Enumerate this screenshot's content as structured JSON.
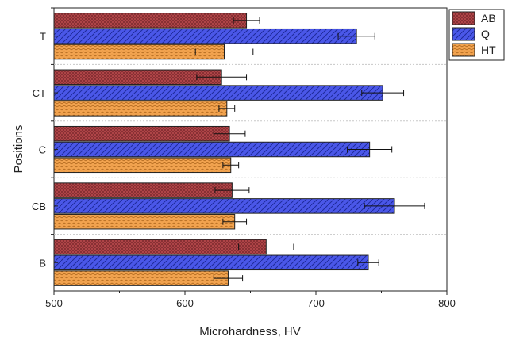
{
  "chart_data": {
    "type": "bar",
    "orientation": "horizontal",
    "xlabel": "Microhardness, HV",
    "ylabel": "Positions",
    "xlim": [
      500,
      800
    ],
    "xticks": [
      500,
      600,
      700,
      800
    ],
    "categories": [
      "B",
      "CB",
      "C",
      "CT",
      "T"
    ],
    "series": [
      {
        "name": "AB",
        "color": "#b4474a",
        "pattern": "crosshatch",
        "values": [
          662,
          636,
          634,
          628,
          647
        ],
        "errors": [
          21,
          13,
          12,
          19,
          10
        ]
      },
      {
        "name": "Q",
        "color": "#4a57e8",
        "pattern": "diagonal",
        "values": [
          740,
          760,
          741,
          751,
          731
        ],
        "errors": [
          8,
          23,
          17,
          16,
          14
        ]
      },
      {
        "name": "HT",
        "color": "#f2a34f",
        "pattern": "weave",
        "values": [
          633,
          638,
          635,
          632,
          630
        ],
        "errors": [
          11,
          9,
          6,
          6,
          22
        ]
      }
    ],
    "legend_position": "top-right",
    "grid": "horizontal dashed separators between categories"
  }
}
